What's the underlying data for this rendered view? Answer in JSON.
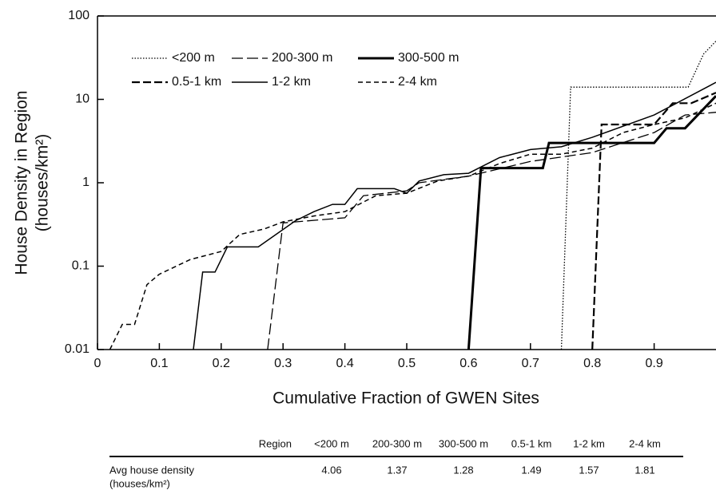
{
  "chart_data": {
    "type": "line",
    "xlabel": "Cumulative Fraction of GWEN Sites",
    "ylabel": [
      "House Density in Region",
      "(houses/km²)"
    ],
    "xlim": [
      0,
      1
    ],
    "xticks": [
      0,
      0.1,
      0.2,
      0.3,
      0.4,
      0.5,
      0.6,
      0.7,
      0.8,
      0.9
    ],
    "ylim": [
      0.01,
      100
    ],
    "yticks": [
      0.01,
      0.1,
      1,
      10,
      100
    ],
    "log_y": true,
    "series": [
      {
        "name": "<200 m",
        "color": "#000",
        "style": "dotted",
        "x": [
          0.75,
          0.765,
          0.955,
          0.98,
          1
        ],
        "values": [
          0.01,
          14,
          14,
          35,
          50
        ]
      },
      {
        "name": "200-300 m",
        "color": "#000",
        "style": "long-dash",
        "x": [
          0.275,
          0.3,
          0.4,
          0.43,
          0.5,
          0.52,
          0.6,
          0.7,
          0.8,
          0.9,
          0.95,
          1
        ],
        "values": [
          0.01,
          0.33,
          0.38,
          0.7,
          0.8,
          1.0,
          1.2,
          1.8,
          2.3,
          4,
          6.5,
          7
        ]
      },
      {
        "name": "300-500 m",
        "color": "#000",
        "style": "thick",
        "x": [
          0.6,
          0.62,
          0.72,
          0.73,
          0.9,
          0.92,
          0.95,
          1
        ],
        "values": [
          0.01,
          1.5,
          1.5,
          3,
          3,
          4.5,
          4.5,
          11
        ]
      },
      {
        "name": "0.5-1 km",
        "color": "#000",
        "style": "thick-dash",
        "x": [
          0.8,
          0.815,
          0.9,
          0.93,
          0.96,
          1
        ],
        "values": [
          0.01,
          5,
          5,
          9,
          9,
          12
        ]
      },
      {
        "name": "1-2 km",
        "color": "#000",
        "style": "solid",
        "x": [
          0.155,
          0.17,
          0.19,
          0.21,
          0.26,
          0.32,
          0.35,
          0.38,
          0.4,
          0.42,
          0.48,
          0.5,
          0.52,
          0.56,
          0.6,
          0.65,
          0.7,
          0.75,
          0.8,
          0.9,
          1
        ],
        "values": [
          0.01,
          0.085,
          0.085,
          0.17,
          0.17,
          0.35,
          0.45,
          0.55,
          0.55,
          0.85,
          0.85,
          0.75,
          1.05,
          1.25,
          1.3,
          2,
          2.5,
          2.7,
          3.5,
          6.5,
          16
        ]
      },
      {
        "name": "2-4 km",
        "color": "#000",
        "style": "short-dash",
        "x": [
          0.02,
          0.04,
          0.06,
          0.08,
          0.1,
          0.15,
          0.2,
          0.23,
          0.27,
          0.3,
          0.35,
          0.4,
          0.45,
          0.5,
          0.55,
          0.6,
          0.65,
          0.7,
          0.75,
          0.8,
          0.85,
          0.9,
          0.95,
          1
        ],
        "values": [
          0.01,
          0.02,
          0.02,
          0.06,
          0.08,
          0.12,
          0.15,
          0.24,
          0.28,
          0.34,
          0.4,
          0.45,
          0.7,
          0.75,
          1.05,
          1.2,
          1.7,
          2.2,
          2.2,
          2.6,
          4,
          5,
          6,
          9
        ]
      }
    ]
  },
  "table": {
    "header": [
      "Region",
      "<200 m",
      "200-300 m",
      "300-500 m",
      "0.5-1 km",
      "1-2 km",
      "2-4 km"
    ],
    "row_label": [
      "Avg house density",
      "(houses/km²)"
    ],
    "values": [
      "4.06",
      "1.37",
      "1.28",
      "1.49",
      "1.57",
      "1.81"
    ]
  }
}
